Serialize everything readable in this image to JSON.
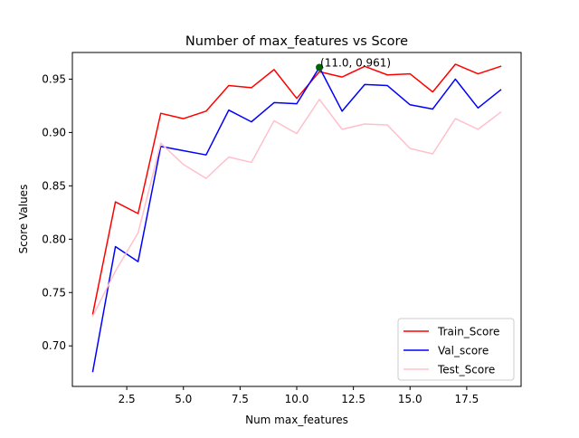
{
  "chart_data": {
    "type": "line",
    "title": "Number of max_features vs Score",
    "xlabel": "Num max_features",
    "ylabel": "Score Values",
    "xlim": [
      0.1,
      19.9
    ],
    "ylim": [
      0.662,
      0.975
    ],
    "x_ticks": [
      2.5,
      5.0,
      7.5,
      10.0,
      12.5,
      15.0,
      17.5
    ],
    "x_tick_labels": [
      "2.5",
      "5.0",
      "7.5",
      "10.0",
      "12.5",
      "15.0",
      "17.5"
    ],
    "y_ticks": [
      0.7,
      0.75,
      0.8,
      0.85,
      0.9,
      0.95
    ],
    "y_tick_labels": [
      "0.70",
      "0.75",
      "0.80",
      "0.85",
      "0.90",
      "0.95"
    ],
    "x": [
      1,
      2,
      3,
      4,
      5,
      6,
      7,
      8,
      9,
      10,
      11,
      12,
      13,
      14,
      15,
      16,
      17,
      18,
      19
    ],
    "series": [
      {
        "name": "Train_Score",
        "color": "#ff0000",
        "values": [
          0.73,
          0.835,
          0.824,
          0.918,
          0.913,
          0.92,
          0.944,
          0.942,
          0.959,
          0.932,
          0.957,
          0.952,
          0.962,
          0.954,
          0.955,
          0.938,
          0.964,
          0.955,
          0.962
        ]
      },
      {
        "name": "Val_score",
        "color": "#0000ff",
        "values": [
          0.676,
          0.793,
          0.779,
          0.887,
          0.883,
          0.879,
          0.921,
          0.91,
          0.928,
          0.927,
          0.961,
          0.92,
          0.945,
          0.944,
          0.926,
          0.922,
          0.95,
          0.923,
          0.94
        ]
      },
      {
        "name": "Test_Score",
        "color": "#ffc0cb",
        "values": [
          0.728,
          0.77,
          0.806,
          0.89,
          0.87,
          0.857,
          0.877,
          0.872,
          0.911,
          0.899,
          0.931,
          0.903,
          0.908,
          0.907,
          0.885,
          0.88,
          0.913,
          0.903,
          0.919
        ]
      }
    ],
    "highlight_point": {
      "x": 11.0,
      "y": 0.961,
      "color": "#006400",
      "label": "(11.0, 0.961)"
    },
    "legend_placement": "lower right",
    "grid": false
  }
}
